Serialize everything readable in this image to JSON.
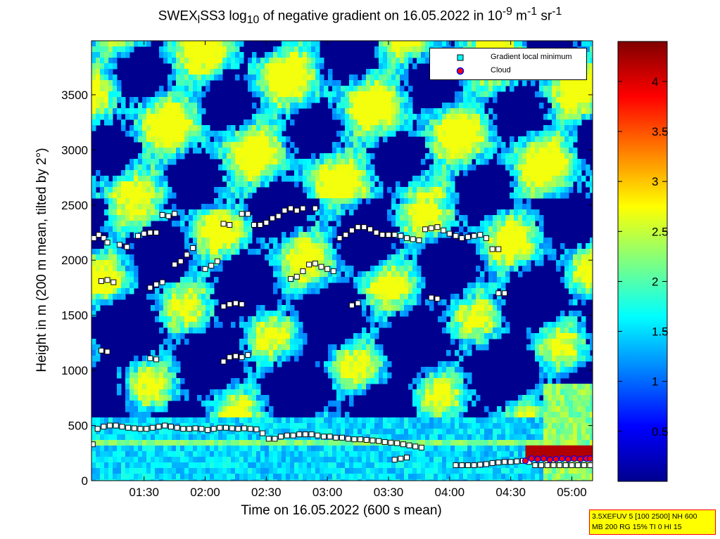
{
  "title_parts": {
    "a": "SWEX",
    "a_sub": "l",
    "b": "SS3 log",
    "b_sub": "10",
    "c": " of negative gradient on 16.05.2022 in 10",
    "c_sup": "-9",
    "d": " m",
    "d_sup": "-1",
    "e": " sr",
    "e_sup": "-1"
  },
  "chart_data": {
    "type": "heatmap",
    "xlabel": "Time on 16.05.2022 (600 s mean)",
    "ylabel": "Height in m (200 m mean, tilted by 2°)",
    "x_tick_labels": [
      "01:30",
      "02:00",
      "02:30",
      "03:00",
      "03:30",
      "04:00",
      "04:30",
      "05:00"
    ],
    "x_tick_hours": [
      1.5,
      2.0,
      2.5,
      3.0,
      3.5,
      4.0,
      4.5,
      5.0
    ],
    "xlim_hours": [
      1.07,
      5.17
    ],
    "y_ticks": [
      0,
      500,
      1000,
      1500,
      2000,
      2500,
      3000,
      3500
    ],
    "y_tick_labels": [
      "0",
      "500",
      "1000",
      "1500",
      "2000",
      "2500",
      "3000",
      "3500"
    ],
    "ylim": [
      0,
      3990
    ],
    "colorbar": {
      "ticks": [
        0.5,
        1,
        1.5,
        2,
        2.5,
        3,
        3.5,
        4
      ],
      "tick_labels": [
        "0.5",
        "1",
        "1.5",
        "2",
        "2.5",
        "3",
        "3.5",
        "4"
      ],
      "range": [
        0,
        4.4
      ],
      "colormap": "jet"
    },
    "series": [
      {
        "name": "Gradient local minimum",
        "marker": "square",
        "color": "#00ffff",
        "points": [
          [
            1.08,
            330
          ],
          [
            1.12,
            470
          ],
          [
            1.17,
            490
          ],
          [
            1.22,
            500
          ],
          [
            1.27,
            500
          ],
          [
            1.32,
            490
          ],
          [
            1.37,
            480
          ],
          [
            1.42,
            475
          ],
          [
            1.47,
            470
          ],
          [
            1.52,
            470
          ],
          [
            1.57,
            480
          ],
          [
            1.62,
            490
          ],
          [
            1.67,
            500
          ],
          [
            1.72,
            490
          ],
          [
            1.77,
            480
          ],
          [
            1.82,
            470
          ],
          [
            1.87,
            470
          ],
          [
            1.92,
            475
          ],
          [
            1.97,
            470
          ],
          [
            2.02,
            460
          ],
          [
            2.07,
            470
          ],
          [
            2.12,
            480
          ],
          [
            2.17,
            480
          ],
          [
            2.22,
            475
          ],
          [
            2.27,
            470
          ],
          [
            2.32,
            475
          ],
          [
            2.37,
            470
          ],
          [
            2.42,
            465
          ],
          [
            2.47,
            430
          ],
          [
            2.52,
            380
          ],
          [
            2.57,
            380
          ],
          [
            2.62,
            400
          ],
          [
            2.67,
            410
          ],
          [
            2.72,
            410
          ],
          [
            2.77,
            420
          ],
          [
            2.82,
            420
          ],
          [
            2.87,
            420
          ],
          [
            2.92,
            410
          ],
          [
            2.97,
            400
          ],
          [
            3.02,
            400
          ],
          [
            3.07,
            390
          ],
          [
            3.12,
            390
          ],
          [
            3.17,
            380
          ],
          [
            3.22,
            375
          ],
          [
            3.27,
            375
          ],
          [
            3.32,
            370
          ],
          [
            3.37,
            365
          ],
          [
            3.42,
            360
          ],
          [
            3.47,
            350
          ],
          [
            3.52,
            345
          ],
          [
            3.57,
            340
          ],
          [
            3.62,
            330
          ],
          [
            3.67,
            320
          ],
          [
            3.72,
            310
          ],
          [
            3.77,
            300
          ],
          [
            3.55,
            190
          ],
          [
            3.6,
            200
          ],
          [
            3.65,
            210
          ],
          [
            4.05,
            140
          ],
          [
            4.1,
            140
          ],
          [
            4.15,
            140
          ],
          [
            4.2,
            140
          ],
          [
            4.25,
            145
          ],
          [
            4.3,
            150
          ],
          [
            4.35,
            160
          ],
          [
            4.4,
            165
          ],
          [
            4.45,
            170
          ],
          [
            4.5,
            170
          ],
          [
            4.55,
            175
          ],
          [
            4.6,
            180
          ],
          [
            4.65,
            170
          ],
          [
            4.7,
            140
          ],
          [
            4.75,
            140
          ],
          [
            4.8,
            140
          ],
          [
            4.85,
            140
          ],
          [
            4.9,
            140
          ],
          [
            4.95,
            140
          ],
          [
            5.0,
            140
          ],
          [
            5.05,
            140
          ],
          [
            5.1,
            140
          ],
          [
            5.15,
            140
          ],
          [
            1.09,
            2200
          ],
          [
            1.13,
            2230
          ],
          [
            1.17,
            2200
          ],
          [
            1.2,
            2160
          ],
          [
            1.3,
            2140
          ],
          [
            1.36,
            2120
          ],
          [
            1.45,
            2220
          ],
          [
            1.5,
            2240
          ],
          [
            1.55,
            2250
          ],
          [
            1.6,
            2250
          ],
          [
            1.65,
            2410
          ],
          [
            1.7,
            2400
          ],
          [
            1.75,
            2420
          ],
          [
            1.75,
            1960
          ],
          [
            1.8,
            1990
          ],
          [
            1.85,
            2050
          ],
          [
            1.9,
            2110
          ],
          [
            2.0,
            1920
          ],
          [
            2.05,
            1950
          ],
          [
            2.1,
            1990
          ],
          [
            2.15,
            2330
          ],
          [
            2.2,
            2320
          ],
          [
            2.3,
            2420
          ],
          [
            2.35,
            2420
          ],
          [
            2.4,
            2320
          ],
          [
            2.45,
            2320
          ],
          [
            2.5,
            2340
          ],
          [
            2.55,
            2380
          ],
          [
            2.6,
            2400
          ],
          [
            2.65,
            2450
          ],
          [
            2.7,
            2470
          ],
          [
            2.75,
            2450
          ],
          [
            2.8,
            2470
          ],
          [
            2.9,
            2470
          ],
          [
            2.7,
            1830
          ],
          [
            2.75,
            1850
          ],
          [
            2.8,
            1900
          ],
          [
            2.85,
            1960
          ],
          [
            2.9,
            1970
          ],
          [
            2.95,
            1940
          ],
          [
            3.0,
            1920
          ],
          [
            3.05,
            1900
          ],
          [
            3.1,
            2200
          ],
          [
            3.15,
            2230
          ],
          [
            3.2,
            2270
          ],
          [
            3.25,
            2300
          ],
          [
            3.3,
            2300
          ],
          [
            3.35,
            2280
          ],
          [
            3.4,
            2250
          ],
          [
            3.45,
            2230
          ],
          [
            3.5,
            2230
          ],
          [
            3.55,
            2230
          ],
          [
            3.6,
            2220
          ],
          [
            3.65,
            2200
          ],
          [
            3.7,
            2190
          ],
          [
            3.75,
            2180
          ],
          [
            1.55,
            1750
          ],
          [
            1.6,
            1780
          ],
          [
            1.65,
            1800
          ],
          [
            2.15,
            1580
          ],
          [
            2.2,
            1600
          ],
          [
            2.25,
            1610
          ],
          [
            2.3,
            1600
          ],
          [
            1.15,
            1180
          ],
          [
            1.2,
            1170
          ],
          [
            1.55,
            1110
          ],
          [
            1.6,
            1100
          ],
          [
            2.15,
            1080
          ],
          [
            2.2,
            1120
          ],
          [
            2.25,
            1130
          ],
          [
            2.3,
            1120
          ],
          [
            2.35,
            1140
          ],
          [
            3.85,
            1660
          ],
          [
            3.9,
            1650
          ],
          [
            4.4,
            1700
          ],
          [
            4.45,
            1700
          ],
          [
            3.2,
            1590
          ],
          [
            3.25,
            1610
          ],
          [
            1.15,
            1810
          ],
          [
            1.2,
            1820
          ],
          [
            1.25,
            1800
          ],
          [
            4.2,
            2220
          ],
          [
            4.25,
            2230
          ],
          [
            4.3,
            2200
          ],
          [
            4.35,
            2100
          ],
          [
            4.4,
            2100
          ],
          [
            3.8,
            2280
          ],
          [
            3.85,
            2290
          ],
          [
            3.9,
            2300
          ],
          [
            3.95,
            2270
          ],
          [
            4.0,
            2240
          ],
          [
            4.05,
            2220
          ],
          [
            4.1,
            2200
          ],
          [
            4.15,
            2210
          ]
        ]
      },
      {
        "name": "Cloud",
        "marker": "circle",
        "color": "#ff0000",
        "points": [
          [
            4.62,
            180
          ],
          [
            4.67,
            200
          ],
          [
            4.72,
            195
          ],
          [
            4.77,
            200
          ],
          [
            4.82,
            190
          ],
          [
            4.87,
            195
          ],
          [
            4.92,
            200
          ],
          [
            4.97,
            195
          ],
          [
            5.02,
            200
          ],
          [
            5.07,
            195
          ],
          [
            5.12,
            200
          ],
          [
            5.15,
            200
          ]
        ]
      }
    ]
  },
  "legend": {
    "gradient_label": "Gradient local minimum",
    "cloud_label": "Cloud"
  },
  "info": {
    "line1": "3.5XEFUV 5 [100 2500] NH 600",
    "line2": "MB 200 RG 15% TI 0 HI 15"
  }
}
